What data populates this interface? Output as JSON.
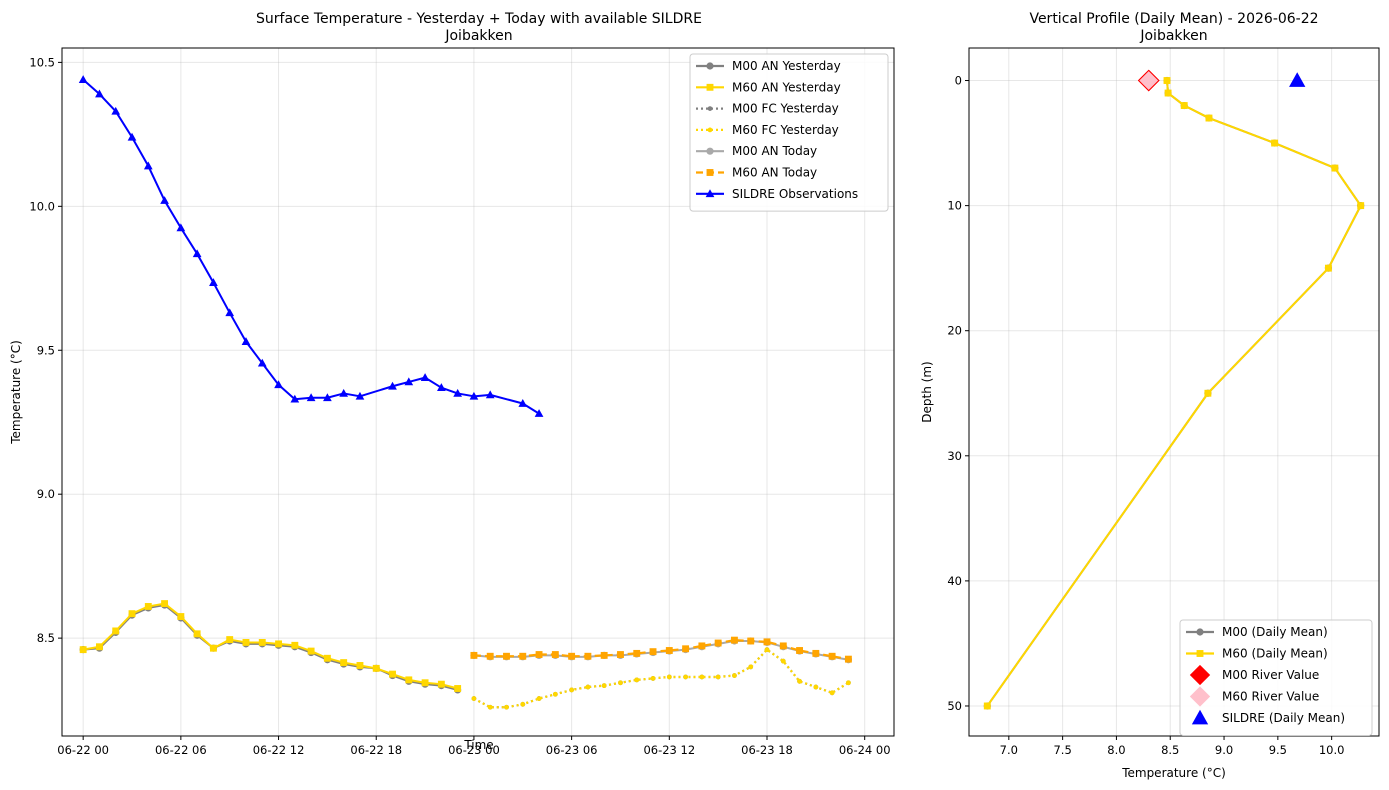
{
  "chart_data": [
    {
      "type": "line",
      "title": "Surface Temperature - Yesterday + Today with available SILDRE",
      "subtitle": "Joibakken",
      "xlabel": "Time",
      "ylabel": "Temperature (°C)",
      "x_unit": "hours since 06-22 00",
      "xlim": [
        -1.3,
        49.8
      ],
      "ylim": [
        8.16,
        10.55
      ],
      "xticks": [
        {
          "v": 0,
          "label": "06-22 00"
        },
        {
          "v": 6,
          "label": "06-22 06"
        },
        {
          "v": 12,
          "label": "06-22 12"
        },
        {
          "v": 18,
          "label": "06-22 18"
        },
        {
          "v": 24,
          "label": "06-23 00"
        },
        {
          "v": 30,
          "label": "06-23 06"
        },
        {
          "v": 36,
          "label": "06-23 12"
        },
        {
          "v": 42,
          "label": "06-23 18"
        },
        {
          "v": 48,
          "label": "06-24 00"
        }
      ],
      "yticks": [
        {
          "v": 8.5,
          "label": "8.5"
        },
        {
          "v": 9.0,
          "label": "9.0"
        },
        {
          "v": 9.5,
          "label": "9.5"
        },
        {
          "v": 10.0,
          "label": "10.0"
        },
        {
          "v": 10.5,
          "label": "10.5"
        }
      ],
      "grid": true,
      "legend": "top-right",
      "series": [
        {
          "name": "M00 AN Yesterday",
          "color": "#808080",
          "style": "solid",
          "marker": "circle",
          "x": [
            0,
            1,
            2,
            3,
            4,
            5,
            6,
            7,
            8,
            9,
            10,
            11,
            12,
            13,
            14,
            15,
            16,
            17,
            18,
            19,
            20,
            21,
            22,
            23
          ],
          "y": [
            8.46,
            8.465,
            8.52,
            8.58,
            8.605,
            8.615,
            8.57,
            8.51,
            8.465,
            8.49,
            8.48,
            8.48,
            8.475,
            8.47,
            8.45,
            8.425,
            8.41,
            8.4,
            8.395,
            8.37,
            8.35,
            8.34,
            8.335,
            8.32
          ]
        },
        {
          "name": "M60 AN Yesterday",
          "color": "#FFD700",
          "style": "solid",
          "marker": "square",
          "x": [
            0,
            1,
            2,
            3,
            4,
            5,
            6,
            7,
            8,
            9,
            10,
            11,
            12,
            13,
            14,
            15,
            16,
            17,
            18,
            19,
            20,
            21,
            22,
            23
          ],
          "y": [
            8.46,
            8.47,
            8.525,
            8.585,
            8.61,
            8.62,
            8.575,
            8.515,
            8.465,
            8.495,
            8.485,
            8.485,
            8.48,
            8.475,
            8.455,
            8.43,
            8.415,
            8.405,
            8.395,
            8.375,
            8.355,
            8.345,
            8.34,
            8.325
          ]
        },
        {
          "name": "M00 FC Yesterday",
          "color": "#808080",
          "style": "dotted",
          "marker": "circle",
          "x": [
            24,
            25,
            26,
            27,
            28,
            29,
            30,
            31,
            32,
            33,
            34,
            35,
            36,
            37,
            38,
            39,
            40,
            41,
            42,
            43,
            44,
            45,
            46,
            47
          ],
          "y": [
            8.29,
            8.26,
            8.26,
            8.27,
            8.29,
            8.305,
            8.32,
            8.33,
            8.335,
            8.345,
            8.355,
            8.36,
            8.365,
            8.365,
            8.365,
            8.365,
            8.37,
            8.4,
            8.46,
            8.42,
            8.35,
            8.33,
            8.31,
            8.345
          ]
        },
        {
          "name": "M60 FC Yesterday",
          "color": "#FFD700",
          "style": "dotted",
          "marker": "circle",
          "x": [
            24,
            25,
            26,
            27,
            28,
            29,
            30,
            31,
            32,
            33,
            34,
            35,
            36,
            37,
            38,
            39,
            40,
            41,
            42,
            43,
            44,
            45,
            46,
            47
          ],
          "y": [
            8.29,
            8.26,
            8.26,
            8.27,
            8.29,
            8.305,
            8.32,
            8.33,
            8.335,
            8.345,
            8.355,
            8.36,
            8.365,
            8.365,
            8.365,
            8.365,
            8.37,
            8.4,
            8.46,
            8.42,
            8.35,
            8.33,
            8.31,
            8.345
          ]
        },
        {
          "name": "M00 AN Today",
          "color": "#A9A9A9",
          "style": "solid",
          "marker": "circle",
          "x": [
            24,
            25,
            26,
            27,
            28,
            29,
            30,
            31,
            32,
            33,
            34,
            35,
            36,
            37,
            38,
            39,
            40,
            41,
            42,
            43,
            44,
            45,
            46,
            47
          ],
          "y": [
            8.44,
            8.435,
            8.435,
            8.435,
            8.44,
            8.44,
            8.435,
            8.435,
            8.44,
            8.44,
            8.445,
            8.45,
            8.455,
            8.46,
            8.47,
            8.48,
            8.49,
            8.49,
            8.485,
            8.47,
            8.455,
            8.445,
            8.435,
            8.425
          ]
        },
        {
          "name": "M60 AN Today",
          "color": "#FFA500",
          "style": "dashed",
          "marker": "square",
          "x": [
            24,
            25,
            26,
            27,
            28,
            29,
            30,
            31,
            32,
            33,
            34,
            35,
            36,
            37,
            38,
            39,
            40,
            41,
            42,
            43,
            44,
            45,
            46,
            47
          ],
          "y": [
            8.44,
            8.437,
            8.437,
            8.437,
            8.443,
            8.443,
            8.437,
            8.437,
            8.44,
            8.443,
            8.447,
            8.453,
            8.457,
            8.463,
            8.473,
            8.483,
            8.493,
            8.49,
            8.487,
            8.473,
            8.457,
            8.447,
            8.437,
            8.427
          ]
        },
        {
          "name": "SILDRE Observations",
          "color": "#0000FF",
          "style": "solid",
          "marker": "triangle",
          "x": [
            0,
            1,
            2,
            3,
            4,
            5,
            6,
            7,
            8,
            9,
            10,
            11,
            12,
            13,
            14,
            15,
            16,
            17,
            19,
            20,
            21,
            22,
            23,
            24,
            25,
            27,
            28
          ],
          "y": [
            10.44,
            10.39,
            10.33,
            10.24,
            10.14,
            10.02,
            9.925,
            9.835,
            9.735,
            9.63,
            9.53,
            9.455,
            9.38,
            9.33,
            9.335,
            9.335,
            9.35,
            9.34,
            9.375,
            9.39,
            9.405,
            9.37,
            9.35,
            9.34,
            9.345,
            9.315,
            9.28
          ]
        }
      ]
    },
    {
      "type": "line",
      "title": "Vertical Profile (Daily Mean) - 2026-06-22",
      "subtitle": "Joibakken",
      "xlabel": "Temperature (°C)",
      "ylabel": "Depth (m)",
      "xlim": [
        6.63,
        10.44
      ],
      "ylim": [
        52.4,
        -2.6
      ],
      "y_inverted": true,
      "xticks": [
        {
          "v": 7.0,
          "label": "7.0"
        },
        {
          "v": 7.5,
          "label": "7.5"
        },
        {
          "v": 8.0,
          "label": "8.0"
        },
        {
          "v": 8.5,
          "label": "8.5"
        },
        {
          "v": 9.0,
          "label": "9.0"
        },
        {
          "v": 9.5,
          "label": "9.5"
        },
        {
          "v": 10.0,
          "label": "10.0"
        }
      ],
      "yticks": [
        {
          "v": 0,
          "label": "0"
        },
        {
          "v": 10,
          "label": "10"
        },
        {
          "v": 20,
          "label": "20"
        },
        {
          "v": 30,
          "label": "30"
        },
        {
          "v": 40,
          "label": "40"
        },
        {
          "v": 50,
          "label": "50"
        }
      ],
      "grid": true,
      "legend": "bottom-right",
      "series": [
        {
          "name": "M00 (Daily Mean)",
          "color": "#808080",
          "style": "solid",
          "marker": "circle",
          "x": [
            8.47,
            8.48,
            8.63,
            8.86,
            9.47,
            10.03,
            10.27,
            9.97,
            8.85,
            6.8
          ],
          "y": [
            0,
            1,
            2,
            3,
            5,
            7,
            10,
            15,
            25,
            50
          ]
        },
        {
          "name": "M60 (Daily Mean)",
          "color": "#FFD700",
          "style": "solid",
          "marker": "square",
          "x": [
            8.47,
            8.48,
            8.63,
            8.86,
            9.47,
            10.03,
            10.27,
            9.97,
            8.85,
            6.8
          ],
          "y": [
            0,
            1,
            2,
            3,
            5,
            7,
            10,
            15,
            25,
            50
          ]
        }
      ],
      "points": [
        {
          "name": "M00 River Value",
          "color": "#FF0000",
          "marker": "diamond",
          "x": 8.3,
          "y": 0
        },
        {
          "name": "M60 River Value",
          "color": "#FFC0CB",
          "marker": "diamond",
          "x": 8.3,
          "y": 0
        },
        {
          "name": "SILDRE (Daily Mean)",
          "color": "#0000FF",
          "marker": "triangle",
          "x": 9.68,
          "y": 0
        }
      ]
    }
  ]
}
